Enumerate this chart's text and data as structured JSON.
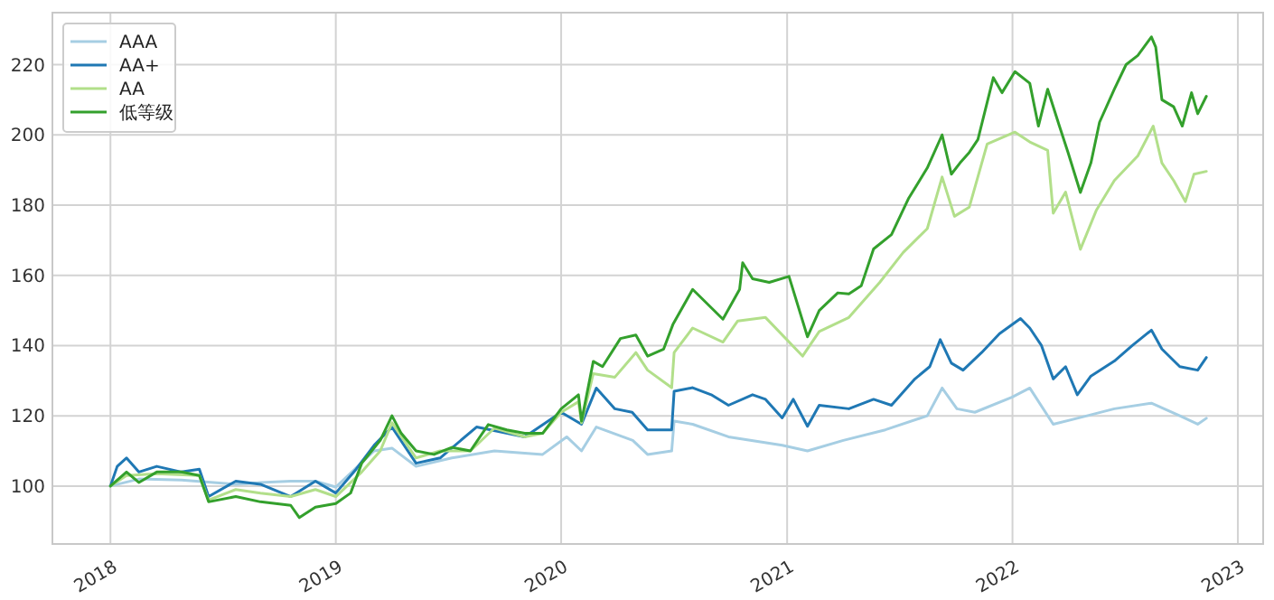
{
  "chart_data": {
    "type": "line",
    "xlim": [
      "2017-09-29",
      "2023-02-11"
    ],
    "ylim": [
      83.5,
      234.8
    ],
    "xticks": [
      "2018",
      "2019",
      "2020",
      "2021",
      "2022",
      "2023"
    ],
    "yticks": [
      100,
      120,
      140,
      160,
      180,
      200,
      220
    ],
    "grid": true,
    "legend": "top left",
    "series": [
      {
        "name": "AAA",
        "color": "#a6cee3",
        "x": [
          "2018-01-01",
          "2018-02-16",
          "2018-04-26",
          "2018-07-23",
          "2018-09-01",
          "2018-10-20",
          "2018-11-29",
          "2019-01-01",
          "2019-03-04",
          "2019-04-02",
          "2019-05-11",
          "2019-07-08",
          "2019-09-15",
          "2019-12-02",
          "2020-01-10",
          "2020-02-03",
          "2020-02-27",
          "2020-04-26",
          "2020-05-20",
          "2020-06-28",
          "2020-07-02",
          "2020-08-01",
          "2020-09-28",
          "2020-12-24",
          "2021-02-03",
          "2021-04-02",
          "2021-06-09",
          "2021-08-16",
          "2021-09-09",
          "2021-10-03",
          "2021-11-01",
          "2021-12-31",
          "2022-01-29",
          "2022-03-08",
          "2022-04-16",
          "2022-06-15",
          "2022-08-14",
          "2022-09-29",
          "2022-10-28",
          "2022-11-11"
        ],
        "values": [
          100,
          102,
          101.7,
          100.5,
          101,
          101.4,
          101.4,
          99.7,
          110,
          110.8,
          105.6,
          108,
          110,
          109,
          114,
          110,
          116.8,
          113,
          109,
          110,
          118.5,
          117.6,
          114,
          111.6,
          110,
          113,
          116,
          120,
          127.9,
          122,
          121,
          125.3,
          127.9,
          117.6,
          119.3,
          122,
          123.6,
          120,
          117.6,
          119.3
        ]
      },
      {
        "name": "AA+",
        "color": "#1f78b4",
        "x": [
          "2018-01-01",
          "2018-01-12",
          "2018-01-27",
          "2018-02-16",
          "2018-03-17",
          "2018-04-26",
          "2018-05-25",
          "2018-06-09",
          "2018-07-23",
          "2018-09-01",
          "2018-10-20",
          "2018-11-29",
          "2019-01-01",
          "2019-02-03",
          "2019-03-04",
          "2019-04-02",
          "2019-05-11",
          "2019-06-19",
          "2019-08-17",
          "2019-11-03",
          "2020-01-01",
          "2020-02-03",
          "2020-02-27",
          "2020-03-28",
          "2020-04-25",
          "2020-05-20",
          "2020-06-28",
          "2020-07-02",
          "2020-08-01",
          "2020-08-31",
          "2020-09-28",
          "2020-11-06",
          "2020-11-27",
          "2020-12-24",
          "2021-01-11",
          "2021-02-03",
          "2021-02-22",
          "2021-04-11",
          "2021-05-21",
          "2021-06-19",
          "2021-07-27",
          "2021-08-20",
          "2021-09-06",
          "2021-09-24",
          "2021-10-13",
          "2021-11-12",
          "2021-12-11",
          "2022-01-14",
          "2022-01-29",
          "2022-02-17",
          "2022-03-08",
          "2022-03-28",
          "2022-04-16",
          "2022-05-08",
          "2022-06-15",
          "2022-07-14",
          "2022-08-14",
          "2022-08-31",
          "2022-09-29",
          "2022-10-28",
          "2022-11-11"
        ],
        "values": [
          100,
          105.6,
          108,
          104,
          105.6,
          104,
          104.8,
          97,
          101.4,
          100.5,
          97,
          101.4,
          98,
          104.8,
          111.6,
          116.8,
          106.5,
          108,
          116.8,
          114,
          121,
          117.6,
          127.9,
          122,
          121,
          116,
          116,
          127,
          128,
          126,
          123,
          126,
          124.7,
          119.4,
          124.7,
          117,
          123,
          122,
          124.7,
          123,
          130.5,
          134,
          141.7,
          135,
          133,
          138,
          143.4,
          147.7,
          145,
          140,
          130.5,
          134,
          126,
          131.3,
          135.6,
          140,
          144.4,
          139,
          134,
          133,
          136.6
        ]
      },
      {
        "name": "AA",
        "color": "#b2df8a",
        "x": [
          "2018-01-01",
          "2018-01-27",
          "2018-03-17",
          "2018-05-25",
          "2018-06-09",
          "2018-07-23",
          "2018-09-01",
          "2018-10-20",
          "2018-11-29",
          "2019-01-01",
          "2019-02-12",
          "2019-03-14",
          "2019-04-02",
          "2019-05-11",
          "2019-06-19",
          "2019-08-07",
          "2019-09-15",
          "2019-11-03",
          "2019-12-02",
          "2020-01-01",
          "2020-01-29",
          "2020-02-03",
          "2020-02-22",
          "2020-03-28",
          "2020-05-01",
          "2020-05-20",
          "2020-06-28",
          "2020-07-02",
          "2020-08-01",
          "2020-09-19",
          "2020-10-13",
          "2020-11-27",
          "2021-01-26",
          "2021-02-22",
          "2021-04-11",
          "2021-05-31",
          "2021-07-08",
          "2021-08-16",
          "2021-09-09",
          "2021-09-29",
          "2021-10-23",
          "2021-11-21",
          "2022-01-05",
          "2022-01-29",
          "2022-02-27",
          "2022-03-08",
          "2022-03-28",
          "2022-04-21",
          "2022-05-17",
          "2022-06-15",
          "2022-07-23",
          "2022-08-17",
          "2022-08-31",
          "2022-09-19",
          "2022-10-08",
          "2022-10-22",
          "2022-11-11"
        ],
        "values": [
          100,
          103,
          103.5,
          103,
          96,
          99,
          98,
          97,
          99,
          97,
          104,
          110,
          118,
          108,
          110,
          110,
          116.5,
          114,
          115,
          121,
          124,
          118,
          132,
          131,
          138,
          133,
          128,
          138,
          145,
          141,
          147,
          148,
          137,
          144,
          148,
          158,
          166.5,
          173.3,
          188,
          176.8,
          179.4,
          197.4,
          200.8,
          198,
          195.6,
          177.7,
          183.7,
          167.4,
          178.6,
          187,
          194,
          202.5,
          192,
          187,
          181,
          188.8,
          189.6
        ]
      },
      {
        "name": "低等级",
        "color": "#33a02c",
        "x": [
          "2018-01-01",
          "2018-01-27",
          "2018-02-16",
          "2018-03-17",
          "2018-04-26",
          "2018-05-25",
          "2018-06-09",
          "2018-07-23",
          "2018-09-01",
          "2018-10-20",
          "2018-11-03",
          "2018-11-29",
          "2019-01-01",
          "2019-01-25",
          "2019-02-12",
          "2019-03-14",
          "2019-04-02",
          "2019-04-17",
          "2019-05-11",
          "2019-06-09",
          "2019-07-08",
          "2019-08-07",
          "2019-09-05",
          "2019-10-05",
          "2019-11-03",
          "2019-12-02",
          "2020-01-01",
          "2020-01-29",
          "2020-02-03",
          "2020-02-22",
          "2020-03-08",
          "2020-04-06",
          "2020-05-01",
          "2020-05-20",
          "2020-06-15",
          "2020-06-30",
          "2020-08-01",
          "2020-09-19",
          "2020-10-16",
          "2020-10-21",
          "2020-11-06",
          "2020-12-03",
          "2021-01-04",
          "2021-02-03",
          "2021-02-22",
          "2021-03-24",
          "2021-04-11",
          "2021-05-01",
          "2021-05-21",
          "2021-06-19",
          "2021-07-17",
          "2021-08-16",
          "2021-09-09",
          "2021-09-24",
          "2021-10-08",
          "2021-10-23",
          "2021-11-06",
          "2021-12-01",
          "2021-12-15",
          "2022-01-05",
          "2022-01-29",
          "2022-02-12",
          "2022-02-27",
          "2022-03-18",
          "2022-04-01",
          "2022-04-21",
          "2022-05-08",
          "2022-05-22",
          "2022-06-15",
          "2022-07-04",
          "2022-07-23",
          "2022-08-14",
          "2022-08-21",
          "2022-08-31",
          "2022-09-19",
          "2022-10-03",
          "2022-10-18",
          "2022-10-28",
          "2022-11-11"
        ],
        "values": [
          100,
          104,
          101,
          104,
          104,
          103,
          95.5,
          97,
          95.5,
          94.5,
          91,
          94,
          95,
          98,
          106.5,
          113,
          120,
          115,
          110,
          109,
          111,
          110,
          117.5,
          116,
          115,
          115,
          122,
          126,
          118.5,
          135.5,
          134,
          142,
          143,
          137,
          139,
          146,
          156,
          147.5,
          156,
          163.6,
          159,
          158,
          159.7,
          142.5,
          150,
          155,
          154.7,
          157,
          167.5,
          171.6,
          182,
          190.6,
          200,
          188.8,
          192,
          195,
          198.7,
          216.3,
          212,
          218,
          214.7,
          202.5,
          213,
          202.5,
          195,
          183.6,
          192,
          203.6,
          213,
          220,
          222.6,
          227.9,
          225,
          210,
          208,
          202.5,
          212,
          206,
          211
        ]
      }
    ]
  }
}
